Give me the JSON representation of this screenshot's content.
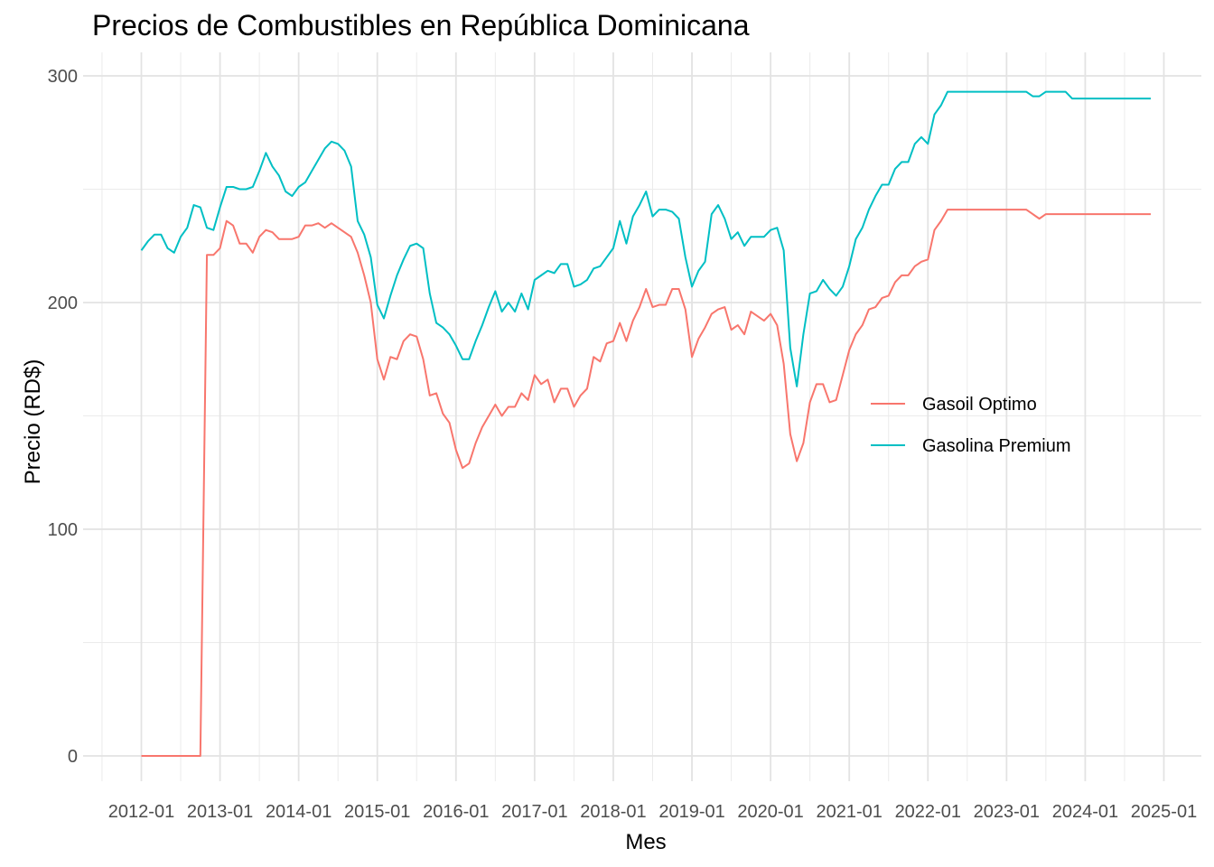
{
  "chart_data": {
    "type": "line",
    "title": "Precios de Combustibles en República Dominicana",
    "xlabel": "Mes",
    "ylabel": "Precio (RD$)",
    "ylim": [
      -10,
      310
    ],
    "yticks": [
      0,
      100,
      200,
      300
    ],
    "xticks": [
      "2012-01",
      "2013-01",
      "2014-01",
      "2015-01",
      "2016-01",
      "2017-01",
      "2018-01",
      "2019-01",
      "2020-01",
      "2021-01",
      "2022-01",
      "2023-01",
      "2024-01",
      "2025-01"
    ],
    "grid": true,
    "legend_position": "right",
    "series": [
      {
        "name": "Gasoil Optimo",
        "color": "#f8766d",
        "points": [
          [
            "2012-01",
            0
          ],
          [
            "2012-07",
            0
          ],
          [
            "2012-10",
            0
          ],
          [
            "2012-11",
            221
          ],
          [
            "2012-12",
            221
          ],
          [
            "2013-01",
            224
          ],
          [
            "2013-02",
            236
          ],
          [
            "2013-03",
            234
          ],
          [
            "2013-04",
            226
          ],
          [
            "2013-05",
            226
          ],
          [
            "2013-06",
            222
          ],
          [
            "2013-07",
            229
          ],
          [
            "2013-08",
            232
          ],
          [
            "2013-09",
            231
          ],
          [
            "2013-10",
            228
          ],
          [
            "2013-11",
            228
          ],
          [
            "2013-12",
            228
          ],
          [
            "2014-01",
            229
          ],
          [
            "2014-02",
            234
          ],
          [
            "2014-03",
            234
          ],
          [
            "2014-04",
            235
          ],
          [
            "2014-05",
            233
          ],
          [
            "2014-06",
            235
          ],
          [
            "2014-07",
            233
          ],
          [
            "2014-08",
            231
          ],
          [
            "2014-09",
            229
          ],
          [
            "2014-10",
            222
          ],
          [
            "2014-11",
            212
          ],
          [
            "2014-12",
            200
          ],
          [
            "2015-01",
            175
          ],
          [
            "2015-02",
            166
          ],
          [
            "2015-03",
            176
          ],
          [
            "2015-04",
            175
          ],
          [
            "2015-05",
            183
          ],
          [
            "2015-06",
            186
          ],
          [
            "2015-07",
            185
          ],
          [
            "2015-08",
            175
          ],
          [
            "2015-09",
            159
          ],
          [
            "2015-10",
            160
          ],
          [
            "2015-11",
            151
          ],
          [
            "2015-12",
            147
          ],
          [
            "2016-01",
            135
          ],
          [
            "2016-02",
            127
          ],
          [
            "2016-03",
            129
          ],
          [
            "2016-04",
            138
          ],
          [
            "2016-05",
            145
          ],
          [
            "2016-06",
            150
          ],
          [
            "2016-07",
            155
          ],
          [
            "2016-08",
            150
          ],
          [
            "2016-09",
            154
          ],
          [
            "2016-10",
            154
          ],
          [
            "2016-11",
            160
          ],
          [
            "2016-12",
            157
          ],
          [
            "2017-01",
            168
          ],
          [
            "2017-02",
            164
          ],
          [
            "2017-03",
            166
          ],
          [
            "2017-04",
            156
          ],
          [
            "2017-05",
            162
          ],
          [
            "2017-06",
            162
          ],
          [
            "2017-07",
            154
          ],
          [
            "2017-08",
            159
          ],
          [
            "2017-09",
            162
          ],
          [
            "2017-10",
            176
          ],
          [
            "2017-11",
            174
          ],
          [
            "2017-12",
            182
          ],
          [
            "2018-01",
            183
          ],
          [
            "2018-02",
            191
          ],
          [
            "2018-03",
            183
          ],
          [
            "2018-04",
            192
          ],
          [
            "2018-05",
            198
          ],
          [
            "2018-06",
            206
          ],
          [
            "2018-07",
            198
          ],
          [
            "2018-08",
            199
          ],
          [
            "2018-09",
            199
          ],
          [
            "2018-10",
            206
          ],
          [
            "2018-11",
            206
          ],
          [
            "2018-12",
            197
          ],
          [
            "2019-01",
            176
          ],
          [
            "2019-02",
            184
          ],
          [
            "2019-03",
            189
          ],
          [
            "2019-04",
            195
          ],
          [
            "2019-05",
            197
          ],
          [
            "2019-06",
            198
          ],
          [
            "2019-07",
            188
          ],
          [
            "2019-08",
            190
          ],
          [
            "2019-09",
            186
          ],
          [
            "2019-10",
            196
          ],
          [
            "2019-11",
            194
          ],
          [
            "2019-12",
            192
          ],
          [
            "2020-01",
            195
          ],
          [
            "2020-02",
            190
          ],
          [
            "2020-03",
            173
          ],
          [
            "2020-04",
            142
          ],
          [
            "2020-05",
            130
          ],
          [
            "2020-06",
            138
          ],
          [
            "2020-07",
            156
          ],
          [
            "2020-08",
            164
          ],
          [
            "2020-09",
            164
          ],
          [
            "2020-10",
            156
          ],
          [
            "2020-11",
            157
          ],
          [
            "2020-12",
            168
          ],
          [
            "2021-01",
            179
          ],
          [
            "2021-02",
            186
          ],
          [
            "2021-03",
            190
          ],
          [
            "2021-04",
            197
          ],
          [
            "2021-05",
            198
          ],
          [
            "2021-06",
            202
          ],
          [
            "2021-07",
            203
          ],
          [
            "2021-08",
            209
          ],
          [
            "2021-09",
            212
          ],
          [
            "2021-10",
            212
          ],
          [
            "2021-11",
            216
          ],
          [
            "2021-12",
            218
          ],
          [
            "2022-01",
            219
          ],
          [
            "2022-02",
            232
          ],
          [
            "2022-03",
            236
          ],
          [
            "2022-04",
            241
          ],
          [
            "2022-06",
            241
          ],
          [
            "2022-09",
            241
          ],
          [
            "2022-12",
            241
          ],
          [
            "2023-01",
            241
          ],
          [
            "2023-04",
            241
          ],
          [
            "2023-05",
            239
          ],
          [
            "2023-06",
            237
          ],
          [
            "2023-07",
            239
          ],
          [
            "2023-10",
            239
          ],
          [
            "2024-01",
            239
          ],
          [
            "2024-06",
            239
          ],
          [
            "2024-11",
            239
          ]
        ]
      },
      {
        "name": "Gasolina Premium",
        "color": "#00bfc4",
        "points": [
          [
            "2012-01",
            223
          ],
          [
            "2012-02",
            227
          ],
          [
            "2012-03",
            230
          ],
          [
            "2012-04",
            230
          ],
          [
            "2012-05",
            224
          ],
          [
            "2012-06",
            222
          ],
          [
            "2012-07",
            229
          ],
          [
            "2012-08",
            233
          ],
          [
            "2012-09",
            243
          ],
          [
            "2012-10",
            242
          ],
          [
            "2012-11",
            233
          ],
          [
            "2012-12",
            232
          ],
          [
            "2013-01",
            242
          ],
          [
            "2013-02",
            251
          ],
          [
            "2013-03",
            251
          ],
          [
            "2013-04",
            250
          ],
          [
            "2013-05",
            250
          ],
          [
            "2013-06",
            251
          ],
          [
            "2013-07",
            258
          ],
          [
            "2013-08",
            266
          ],
          [
            "2013-09",
            260
          ],
          [
            "2013-10",
            256
          ],
          [
            "2013-11",
            249
          ],
          [
            "2013-12",
            247
          ],
          [
            "2014-01",
            251
          ],
          [
            "2014-02",
            253
          ],
          [
            "2014-03",
            258
          ],
          [
            "2014-04",
            263
          ],
          [
            "2014-05",
            268
          ],
          [
            "2014-06",
            271
          ],
          [
            "2014-07",
            270
          ],
          [
            "2014-08",
            267
          ],
          [
            "2014-09",
            260
          ],
          [
            "2014-10",
            236
          ],
          [
            "2014-11",
            230
          ],
          [
            "2014-12",
            220
          ],
          [
            "2015-01",
            199
          ],
          [
            "2015-02",
            193
          ],
          [
            "2015-03",
            203
          ],
          [
            "2015-04",
            212
          ],
          [
            "2015-05",
            219
          ],
          [
            "2015-06",
            225
          ],
          [
            "2015-07",
            226
          ],
          [
            "2015-08",
            224
          ],
          [
            "2015-09",
            204
          ],
          [
            "2015-10",
            191
          ],
          [
            "2015-11",
            189
          ],
          [
            "2015-12",
            186
          ],
          [
            "2016-01",
            181
          ],
          [
            "2016-02",
            175
          ],
          [
            "2016-03",
            175
          ],
          [
            "2016-04",
            183
          ],
          [
            "2016-05",
            190
          ],
          [
            "2016-06",
            198
          ],
          [
            "2016-07",
            205
          ],
          [
            "2016-08",
            196
          ],
          [
            "2016-09",
            200
          ],
          [
            "2016-10",
            196
          ],
          [
            "2016-11",
            204
          ],
          [
            "2016-12",
            197
          ],
          [
            "2017-01",
            210
          ],
          [
            "2017-02",
            212
          ],
          [
            "2017-03",
            214
          ],
          [
            "2017-04",
            213
          ],
          [
            "2017-05",
            217
          ],
          [
            "2017-06",
            217
          ],
          [
            "2017-07",
            207
          ],
          [
            "2017-08",
            208
          ],
          [
            "2017-09",
            210
          ],
          [
            "2017-10",
            215
          ],
          [
            "2017-11",
            216
          ],
          [
            "2017-12",
            220
          ],
          [
            "2018-01",
            224
          ],
          [
            "2018-02",
            236
          ],
          [
            "2018-03",
            226
          ],
          [
            "2018-04",
            238
          ],
          [
            "2018-05",
            243
          ],
          [
            "2018-06",
            249
          ],
          [
            "2018-07",
            238
          ],
          [
            "2018-08",
            241
          ],
          [
            "2018-09",
            241
          ],
          [
            "2018-10",
            240
          ],
          [
            "2018-11",
            237
          ],
          [
            "2018-12",
            220
          ],
          [
            "2019-01",
            207
          ],
          [
            "2019-02",
            214
          ],
          [
            "2019-03",
            218
          ],
          [
            "2019-04",
            239
          ],
          [
            "2019-05",
            243
          ],
          [
            "2019-06",
            237
          ],
          [
            "2019-07",
            228
          ],
          [
            "2019-08",
            231
          ],
          [
            "2019-09",
            225
          ],
          [
            "2019-10",
            229
          ],
          [
            "2019-11",
            229
          ],
          [
            "2019-12",
            229
          ],
          [
            "2020-01",
            232
          ],
          [
            "2020-02",
            233
          ],
          [
            "2020-03",
            223
          ],
          [
            "2020-04",
            180
          ],
          [
            "2020-05",
            163
          ],
          [
            "2020-06",
            186
          ],
          [
            "2020-07",
            204
          ],
          [
            "2020-08",
            205
          ],
          [
            "2020-09",
            210
          ],
          [
            "2020-10",
            206
          ],
          [
            "2020-11",
            203
          ],
          [
            "2020-12",
            207
          ],
          [
            "2021-01",
            216
          ],
          [
            "2021-02",
            228
          ],
          [
            "2021-03",
            233
          ],
          [
            "2021-04",
            241
          ],
          [
            "2021-05",
            247
          ],
          [
            "2021-06",
            252
          ],
          [
            "2021-07",
            252
          ],
          [
            "2021-08",
            259
          ],
          [
            "2021-09",
            262
          ],
          [
            "2021-10",
            262
          ],
          [
            "2021-11",
            270
          ],
          [
            "2021-12",
            273
          ],
          [
            "2022-01",
            270
          ],
          [
            "2022-02",
            283
          ],
          [
            "2022-03",
            287
          ],
          [
            "2022-04",
            293
          ],
          [
            "2022-06",
            293
          ],
          [
            "2022-09",
            293
          ],
          [
            "2022-12",
            293
          ],
          [
            "2023-01",
            293
          ],
          [
            "2023-04",
            293
          ],
          [
            "2023-05",
            291
          ],
          [
            "2023-06",
            291
          ],
          [
            "2023-07",
            293
          ],
          [
            "2023-09",
            293
          ],
          [
            "2023-10",
            293
          ],
          [
            "2023-11",
            290
          ],
          [
            "2024-01",
            290
          ],
          [
            "2024-06",
            290
          ],
          [
            "2024-11",
            290
          ]
        ]
      }
    ]
  }
}
